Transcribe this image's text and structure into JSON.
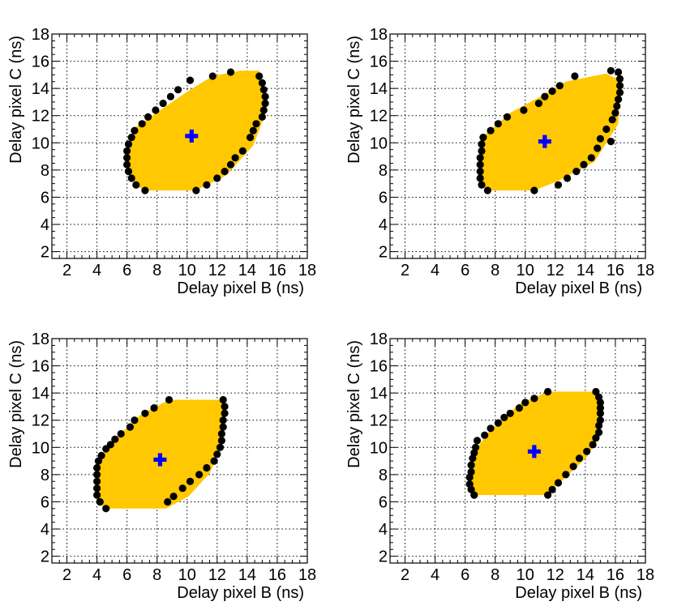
{
  "colors": {
    "background": "#ffffff",
    "region_fill": "#ffc800",
    "boundary_points": "#000000",
    "center_marker": "#0000ff"
  },
  "chart_data": [
    {
      "type": "scatter",
      "panel": "top-left",
      "xlabel": "Delay pixel B (ns)",
      "ylabel": "Delay pixel C (ns)",
      "xlim": [
        1,
        18
      ],
      "ylim": [
        1.5,
        18
      ],
      "xticks": [
        "2",
        "4",
        "6",
        "8",
        "10",
        "12",
        "14",
        "16",
        "18"
      ],
      "yticks": [
        "2",
        "4",
        "6",
        "8",
        "10",
        "12",
        "14",
        "16",
        "18"
      ],
      "grid": true,
      "center": [
        10.3,
        10.5
      ],
      "region": [
        [
          7.2,
          6.5
        ],
        [
          10.6,
          6.5
        ],
        [
          12.6,
          7.6
        ],
        [
          14.4,
          9.8
        ],
        [
          15.3,
          12.4
        ],
        [
          14.8,
          15.3
        ],
        [
          13.5,
          15.3
        ],
        [
          11.7,
          14.9
        ],
        [
          10.2,
          13.9
        ],
        [
          6.5,
          11.1
        ],
        [
          6.0,
          9.0
        ],
        [
          6.5,
          6.9
        ],
        [
          7.2,
          6.5
        ]
      ],
      "boundary": [
        [
          7.2,
          6.5
        ],
        [
          6.6,
          6.9
        ],
        [
          6.3,
          7.4
        ],
        [
          6.1,
          7.9
        ],
        [
          6.0,
          8.4
        ],
        [
          6.0,
          8.9
        ],
        [
          6.0,
          9.4
        ],
        [
          6.1,
          9.9
        ],
        [
          6.3,
          10.4
        ],
        [
          6.5,
          10.9
        ],
        [
          7.0,
          11.4
        ],
        [
          7.4,
          11.9
        ],
        [
          7.9,
          12.4
        ],
        [
          8.4,
          12.9
        ],
        [
          8.9,
          13.4
        ],
        [
          9.4,
          13.9
        ],
        [
          10.2,
          14.6
        ],
        [
          11.7,
          14.9
        ],
        [
          12.9,
          15.2
        ],
        [
          14.8,
          14.9
        ],
        [
          15.0,
          14.4
        ],
        [
          15.1,
          13.9
        ],
        [
          15.2,
          13.4
        ],
        [
          15.2,
          12.9
        ],
        [
          15.1,
          12.4
        ],
        [
          15.0,
          11.9
        ],
        [
          14.6,
          11.4
        ],
        [
          14.4,
          10.9
        ],
        [
          14.2,
          10.4
        ],
        [
          13.7,
          9.4
        ],
        [
          13.2,
          8.9
        ],
        [
          12.9,
          8.4
        ],
        [
          12.5,
          7.9
        ],
        [
          12.0,
          7.4
        ],
        [
          11.3,
          6.9
        ],
        [
          10.6,
          6.5
        ]
      ]
    },
    {
      "type": "scatter",
      "panel": "top-right",
      "xlabel": "Delay pixel B (ns)",
      "ylabel": "Delay pixel C (ns)",
      "xlim": [
        1,
        18
      ],
      "ylim": [
        1.5,
        18
      ],
      "xticks": [
        "2",
        "4",
        "6",
        "8",
        "10",
        "12",
        "14",
        "16",
        "18"
      ],
      "yticks": [
        "2",
        "4",
        "6",
        "8",
        "10",
        "12",
        "14",
        "16",
        "18"
      ],
      "grid": true,
      "center": [
        11.3,
        10.1
      ],
      "region": [
        [
          7.5,
          6.5
        ],
        [
          10.6,
          6.5
        ],
        [
          12.2,
          7.2
        ],
        [
          14.6,
          8.6
        ],
        [
          16.2,
          11.4
        ],
        [
          16.3,
          14.6
        ],
        [
          15.4,
          15.1
        ],
        [
          12.7,
          14.5
        ],
        [
          11.0,
          13.4
        ],
        [
          9.0,
          12.2
        ],
        [
          7.0,
          10.3
        ],
        [
          7.0,
          7.0
        ],
        [
          7.5,
          6.5
        ]
      ],
      "boundary": [
        [
          7.5,
          6.5
        ],
        [
          7.1,
          6.9
        ],
        [
          7.0,
          7.4
        ],
        [
          7.0,
          7.9
        ],
        [
          7.0,
          8.4
        ],
        [
          7.0,
          8.9
        ],
        [
          7.1,
          9.4
        ],
        [
          7.1,
          9.9
        ],
        [
          7.2,
          10.4
        ],
        [
          7.7,
          10.9
        ],
        [
          8.2,
          11.4
        ],
        [
          8.8,
          11.9
        ],
        [
          9.9,
          12.4
        ],
        [
          10.9,
          12.9
        ],
        [
          11.3,
          13.4
        ],
        [
          11.8,
          13.8
        ],
        [
          12.3,
          14.2
        ],
        [
          13.3,
          14.9
        ],
        [
          15.7,
          15.3
        ],
        [
          16.2,
          15.2
        ],
        [
          16.3,
          14.7
        ],
        [
          16.3,
          14.2
        ],
        [
          16.3,
          13.7
        ],
        [
          16.2,
          13.2
        ],
        [
          16.1,
          12.7
        ],
        [
          16.0,
          12.2
        ],
        [
          15.8,
          11.7
        ],
        [
          15.4,
          11.0
        ],
        [
          15.7,
          10.1
        ],
        [
          15.0,
          10.3
        ],
        [
          14.8,
          9.6
        ],
        [
          14.4,
          8.9
        ],
        [
          13.9,
          8.4
        ],
        [
          13.4,
          7.9
        ],
        [
          12.8,
          7.4
        ],
        [
          12.2,
          6.9
        ],
        [
          10.6,
          6.5
        ]
      ]
    },
    {
      "type": "scatter",
      "panel": "bottom-left",
      "xlabel": "Delay pixel B (ns)",
      "ylabel": "Delay pixel C (ns)",
      "xlim": [
        1,
        18
      ],
      "ylim": [
        1.5,
        18
      ],
      "xticks": [
        "2",
        "4",
        "6",
        "8",
        "10",
        "12",
        "14",
        "16",
        "18"
      ],
      "yticks": [
        "2",
        "4",
        "6",
        "8",
        "10",
        "12",
        "14",
        "16",
        "18"
      ],
      "grid": true,
      "center": [
        8.2,
        9.1
      ],
      "region": [
        [
          4.6,
          5.5
        ],
        [
          8.6,
          5.5
        ],
        [
          10.1,
          6.4
        ],
        [
          11.5,
          8.1
        ],
        [
          12.3,
          10.0
        ],
        [
          12.6,
          13.5
        ],
        [
          10.0,
          13.5
        ],
        [
          8.8,
          13.5
        ],
        [
          6.9,
          12.4
        ],
        [
          5.2,
          10.6
        ],
        [
          4.0,
          9.0
        ],
        [
          4.0,
          6.0
        ],
        [
          4.6,
          5.5
        ]
      ],
      "boundary": [
        [
          4.6,
          5.5
        ],
        [
          4.2,
          6.0
        ],
        [
          4.0,
          6.5
        ],
        [
          4.0,
          7.0
        ],
        [
          4.0,
          7.5
        ],
        [
          4.0,
          8.0
        ],
        [
          4.0,
          8.5
        ],
        [
          4.1,
          9.0
        ],
        [
          4.3,
          9.4
        ],
        [
          4.6,
          9.9
        ],
        [
          4.9,
          10.2
        ],
        [
          5.2,
          10.6
        ],
        [
          5.6,
          11.0
        ],
        [
          6.2,
          11.5
        ],
        [
          6.5,
          12.0
        ],
        [
          7.2,
          12.5
        ],
        [
          7.8,
          12.9
        ],
        [
          8.8,
          13.5
        ],
        [
          12.4,
          13.5
        ],
        [
          12.5,
          13.0
        ],
        [
          12.5,
          12.5
        ],
        [
          12.4,
          12.0
        ],
        [
          12.4,
          11.5
        ],
        [
          12.3,
          11.0
        ],
        [
          12.3,
          10.5
        ],
        [
          12.2,
          10.0
        ],
        [
          12.0,
          9.5
        ],
        [
          11.8,
          9.0
        ],
        [
          11.3,
          8.5
        ],
        [
          10.8,
          8.0
        ],
        [
          10.2,
          7.5
        ],
        [
          9.7,
          7.0
        ],
        [
          9.1,
          6.4
        ],
        [
          8.7,
          6.0
        ]
      ]
    },
    {
      "type": "scatter",
      "panel": "bottom-right",
      "xlabel": "Delay pixel B (ns)",
      "ylabel": "Delay pixel C (ns)",
      "xlim": [
        1,
        18
      ],
      "ylim": [
        1.5,
        18
      ],
      "xticks": [
        "2",
        "4",
        "6",
        "8",
        "10",
        "12",
        "14",
        "16",
        "18"
      ],
      "yticks": [
        "2",
        "4",
        "6",
        "8",
        "10",
        "12",
        "14",
        "16",
        "18"
      ],
      "grid": true,
      "center": [
        10.6,
        9.7
      ],
      "region": [
        [
          6.6,
          6.5
        ],
        [
          11.4,
          6.5
        ],
        [
          12.7,
          7.8
        ],
        [
          14.1,
          9.3
        ],
        [
          15.0,
          10.9
        ],
        [
          14.9,
          14.1
        ],
        [
          11.5,
          14.1
        ],
        [
          9.6,
          13.2
        ],
        [
          7.6,
          11.2
        ],
        [
          6.5,
          9.5
        ],
        [
          6.3,
          7.3
        ],
        [
          6.6,
          6.5
        ]
      ],
      "boundary": [
        [
          6.6,
          6.5
        ],
        [
          6.4,
          6.9
        ],
        [
          6.3,
          7.3
        ],
        [
          6.3,
          7.8
        ],
        [
          6.4,
          8.2
        ],
        [
          6.4,
          8.7
        ],
        [
          6.5,
          9.2
        ],
        [
          6.6,
          9.6
        ],
        [
          6.7,
          10.0
        ],
        [
          6.8,
          10.5
        ],
        [
          7.3,
          10.9
        ],
        [
          7.7,
          11.4
        ],
        [
          8.2,
          11.8
        ],
        [
          8.6,
          12.2
        ],
        [
          9.0,
          12.5
        ],
        [
          9.6,
          12.9
        ],
        [
          10.0,
          13.3
        ],
        [
          10.6,
          13.6
        ],
        [
          11.5,
          14.1
        ],
        [
          14.7,
          14.1
        ],
        [
          14.9,
          13.7
        ],
        [
          15.0,
          13.3
        ],
        [
          15.0,
          12.9
        ],
        [
          15.0,
          12.5
        ],
        [
          15.0,
          12.0
        ],
        [
          14.9,
          11.6
        ],
        [
          14.9,
          11.1
        ],
        [
          14.7,
          10.7
        ],
        [
          14.5,
          10.2
        ],
        [
          14.1,
          9.7
        ],
        [
          13.6,
          9.2
        ],
        [
          13.2,
          8.6
        ],
        [
          12.7,
          8.0
        ],
        [
          12.2,
          7.4
        ],
        [
          11.8,
          6.9
        ],
        [
          11.5,
          6.5
        ]
      ]
    }
  ]
}
